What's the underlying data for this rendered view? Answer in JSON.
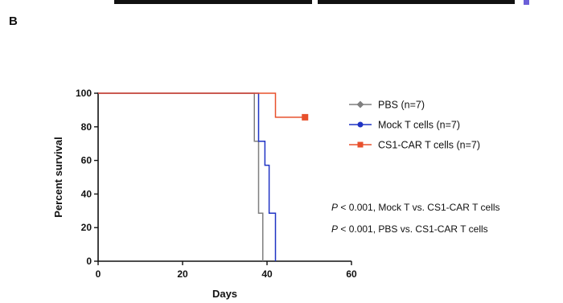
{
  "panel_label": "B",
  "pvalues": [
    {
      "p": "P",
      "text": " < 0.001, Mock T vs. CS1-CAR T cells"
    },
    {
      "p": "P",
      "text": " < 0.001, PBS vs. CS1-CAR T cells"
    }
  ],
  "chart_data": {
    "type": "line",
    "subtype": "kaplan-meier survival (step)",
    "title": "",
    "xlabel": "Days",
    "ylabel": "Percent survival",
    "xlim": [
      0,
      60
    ],
    "ylim": [
      0,
      100
    ],
    "xticks": [
      0,
      20,
      40,
      60
    ],
    "yticks": [
      0,
      20,
      40,
      60,
      80,
      100
    ],
    "grid": false,
    "legend_position": "right",
    "series": [
      {
        "name": "PBS (n=7)",
        "color": "#7f7f7f",
        "marker": "diamond",
        "points": [
          [
            0,
            100
          ],
          [
            37,
            100
          ],
          [
            37,
            71.4
          ],
          [
            38,
            71.4
          ],
          [
            38,
            28.6
          ],
          [
            39,
            28.6
          ],
          [
            39,
            0
          ]
        ],
        "end_marker": null
      },
      {
        "name": "Mock T cells (n=7)",
        "color": "#1f33c4",
        "marker": "circle",
        "points": [
          [
            0,
            100
          ],
          [
            38,
            100
          ],
          [
            38,
            71.4
          ],
          [
            39.5,
            71.4
          ],
          [
            39.5,
            57.1
          ],
          [
            40.5,
            57.1
          ],
          [
            40.5,
            28.6
          ],
          [
            42,
            28.6
          ],
          [
            42,
            0
          ]
        ],
        "end_marker": null
      },
      {
        "name": "CS1-CAR T cells (n=7)",
        "color": "#e8502c",
        "marker": "square",
        "points": [
          [
            0,
            100
          ],
          [
            42,
            100
          ],
          [
            42,
            85.7
          ],
          [
            49,
            85.7
          ]
        ],
        "end_marker": [
          49,
          85.7
        ]
      }
    ]
  }
}
